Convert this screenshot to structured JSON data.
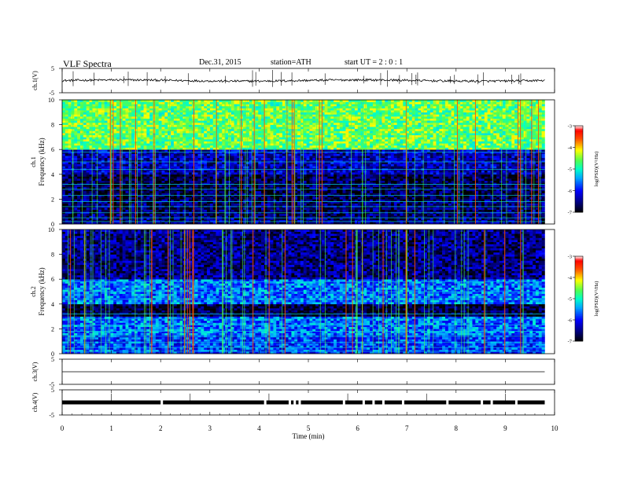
{
  "header": {
    "title": "VLF  Spectra",
    "date": "Dec.31, 2015",
    "station": "station=ATH",
    "start": "start  UT  =   2  : 0  : 1"
  },
  "chart_data": [
    {
      "type": "line",
      "panel": "ch1-waveform",
      "ylabel": "ch.1(V)",
      "ylim": [
        -5,
        5
      ],
      "yticks": [
        "5",
        "-5"
      ],
      "xlim": [
        0,
        10
      ],
      "series": [
        {
          "baseline": 0,
          "values_range": [
            -1,
            1
          ]
        }
      ]
    },
    {
      "type": "heatmap",
      "panel": "ch1-spectrogram",
      "ylabel": "ch.1\nFrequency  (kHz)",
      "ylim": [
        0,
        10
      ],
      "yticks": [
        "0",
        "2",
        "4",
        "6",
        "8",
        "10"
      ],
      "xlim": [
        0,
        9.8
      ],
      "colorbar": {
        "label": "log(PSD)(V²/Hz)",
        "range": [
          -7,
          -3
        ],
        "ticks": [
          "-3",
          "-4",
          "-5",
          "-6",
          "-7"
        ]
      },
      "bands_khz_log_psd": [
        [
          0,
          0.5,
          -6.5
        ],
        [
          0.5,
          2,
          -6.6
        ],
        [
          2,
          4,
          -6.7
        ],
        [
          4,
          6,
          -6.3
        ],
        [
          6,
          10,
          -4.6
        ]
      ]
    },
    {
      "type": "heatmap",
      "panel": "ch2-spectrogram",
      "ylabel": "ch.2\nFrequency  (kHz)",
      "ylim": [
        0,
        10
      ],
      "yticks": [
        "0",
        "2",
        "4",
        "6",
        "8",
        "10"
      ],
      "xlim": [
        0,
        9.8
      ],
      "colorbar": {
        "label": "log(PSD)(V²/Hz)",
        "range": [
          -7,
          -3
        ],
        "ticks": [
          "-3",
          "-4",
          "-5",
          "-6",
          "-7"
        ]
      },
      "bands_khz_log_psd": [
        [
          0,
          1.5,
          -5.8
        ],
        [
          1.5,
          3,
          -5.6
        ],
        [
          3,
          4,
          -6.8
        ],
        [
          4,
          6,
          -5.6
        ],
        [
          6,
          10,
          -6.5
        ]
      ]
    },
    {
      "type": "line",
      "panel": "ch3-waveform",
      "ylabel": "ch.3(V)",
      "ylim": [
        -5,
        5
      ],
      "yticks": [
        "5",
        "-5"
      ],
      "xlim": [
        0,
        10
      ],
      "series": [
        {
          "baseline": 0
        }
      ]
    },
    {
      "type": "line",
      "panel": "ch4-waveform",
      "ylabel": "ch.4(V)",
      "ylim": [
        -5,
        5
      ],
      "yticks": [
        "5",
        "-5"
      ],
      "xlim": [
        0,
        10
      ],
      "series": [
        {
          "baseline": 0
        }
      ]
    }
  ],
  "xaxis": {
    "label": "Time  (min)",
    "ticks": [
      "0",
      "1",
      "2",
      "3",
      "4",
      "5",
      "6",
      "7",
      "8",
      "9",
      "10"
    ]
  }
}
